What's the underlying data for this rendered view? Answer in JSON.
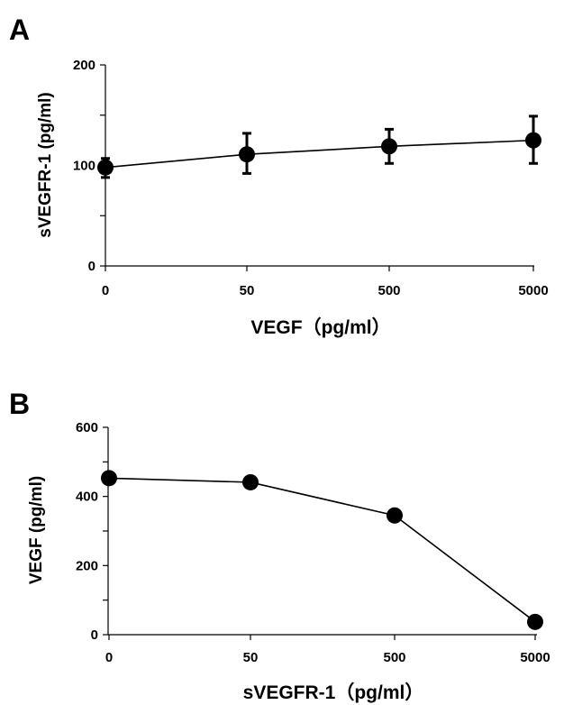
{
  "chart_data": [
    {
      "type": "line",
      "panel_label": "A",
      "categories": [
        "0",
        "50",
        "500",
        "5000"
      ],
      "series": [
        {
          "values": [
            98,
            111,
            119,
            125
          ],
          "error_low": [
            88,
            92,
            102,
            102
          ],
          "error_high": [
            107,
            132,
            136,
            149
          ]
        }
      ],
      "y_ticks": [
        0,
        100,
        200
      ],
      "y_minor_ticks": [
        50,
        150
      ],
      "ylim": [
        0,
        200
      ],
      "xlabel": "VEGF（pg/ml）",
      "ylabel": "sVEGFR-1 (pg/ml)",
      "grid": false,
      "legend": false
    },
    {
      "type": "line",
      "panel_label": "B",
      "categories": [
        "0",
        "50",
        "500",
        "5000"
      ],
      "series": [
        {
          "values": [
            453,
            441,
            345,
            37
          ]
        }
      ],
      "y_ticks": [
        0,
        200,
        400,
        600
      ],
      "y_minor_ticks": [
        100,
        300,
        500
      ],
      "ylim": [
        0,
        600
      ],
      "xlabel": "sVEGFR-1（pg/ml）",
      "ylabel": "VEGF (pg/ml)",
      "grid": false,
      "legend": false
    }
  ]
}
